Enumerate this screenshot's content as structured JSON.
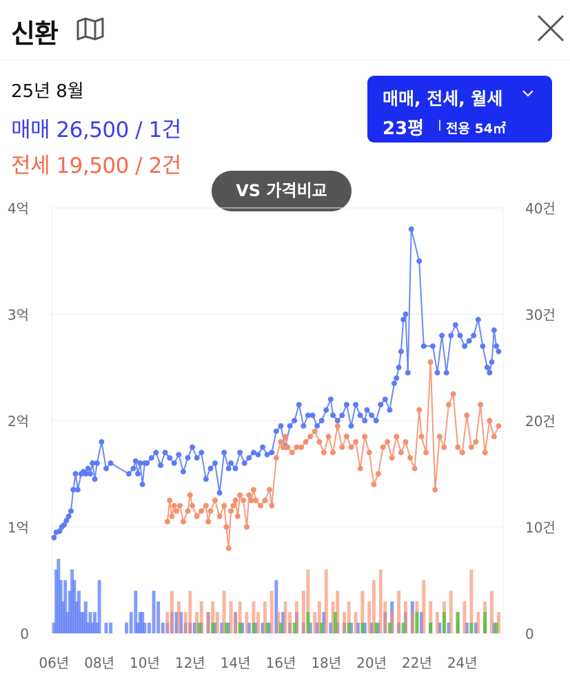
{
  "header": {
    "title": "신환",
    "map_icon": "map-icon",
    "close_icon": "close-icon"
  },
  "summary": {
    "month": "25년 8월",
    "sale": {
      "label": "매매",
      "price": "26,500",
      "count": "1건"
    },
    "jeonse": {
      "label": "전세",
      "price": "19,500",
      "count": "2건"
    }
  },
  "filter": {
    "types": "매매, 전세, 월세",
    "size": "23평",
    "area": "전용 54㎡"
  },
  "compare_button": "VS 가격비교",
  "colors": {
    "sale": "#5b7cf5",
    "sale_text": "#3a40e6",
    "jeonse": "#f5906e",
    "jeonse_text": "#f56a4c",
    "monthly": "#4cc23a",
    "button": "#1a2cf0"
  },
  "chart_data": {
    "type": "line",
    "x_tick_labels": [
      "06년",
      "08년",
      "10년",
      "12년",
      "14년",
      "16년",
      "18년",
      "20년",
      "22년",
      "24년"
    ],
    "x_tick_years": [
      2006,
      2008,
      2010,
      2012,
      2014,
      2016,
      2018,
      2020,
      2022,
      2024
    ],
    "xlim": [
      2005.9,
      2025.8
    ],
    "y_left_tick_labels": [
      "0",
      "1억",
      "2억",
      "3억",
      "4억"
    ],
    "y_left_ticks": [
      0,
      10000,
      20000,
      30000,
      40000
    ],
    "y_left_unit": "만원",
    "y_right_tick_labels": [
      "0",
      "10건",
      "20건",
      "30건",
      "40건"
    ],
    "y_right_ticks": [
      0,
      10,
      20,
      30,
      40
    ],
    "ylim": [
      0,
      40000
    ],
    "grid": true,
    "series": [
      {
        "key": "sale",
        "type": "line",
        "x": [
          2006.0,
          2006.1,
          2006.25,
          2006.35,
          2006.45,
          2006.55,
          2006.65,
          2006.75,
          2006.85,
          2006.95,
          2007.05,
          2007.2,
          2007.3,
          2007.4,
          2007.5,
          2007.6,
          2007.7,
          2007.8,
          2007.9,
          2008.1,
          2008.3,
          2008.5,
          2009.3,
          2009.5,
          2009.6,
          2009.7,
          2009.8,
          2009.9,
          2010.0,
          2010.1,
          2010.3,
          2010.5,
          2010.7,
          2010.9,
          2011.1,
          2011.3,
          2011.5,
          2011.7,
          2011.9,
          2012.1,
          2012.3,
          2012.5,
          2012.7,
          2012.9,
          2013.1,
          2013.3,
          2013.5,
          2013.7,
          2013.8,
          2014.0,
          2014.2,
          2014.4,
          2014.6,
          2014.8,
          2015.0,
          2015.2,
          2015.4,
          2015.6,
          2015.8,
          2016.0,
          2016.2,
          2016.4,
          2016.6,
          2016.8,
          2017.0,
          2017.2,
          2017.4,
          2017.6,
          2017.8,
          2018.0,
          2018.2,
          2018.3,
          2018.5,
          2018.7,
          2018.9,
          2019.1,
          2019.3,
          2019.5,
          2019.7,
          2019.8,
          2020.0,
          2020.2,
          2020.4,
          2020.6,
          2020.8,
          2021.0,
          2021.1,
          2021.2,
          2021.3,
          2021.4,
          2021.5,
          2021.6,
          2021.75,
          2022.1,
          2022.3,
          2022.7,
          2022.9,
          2023.1,
          2023.3,
          2023.5,
          2023.7,
          2023.9,
          2024.1,
          2024.3,
          2024.5,
          2024.7,
          2024.9,
          2025.1,
          2025.2,
          2025.3,
          2025.4,
          2025.5,
          2025.6
        ],
        "values": [
          9000,
          9500,
          9600,
          10000,
          10200,
          10600,
          11000,
          11500,
          13500,
          15000,
          13500,
          15000,
          15200,
          15000,
          15500,
          15000,
          16000,
          14500,
          16000,
          18000,
          15500,
          16000,
          15000,
          15500,
          16200,
          15000,
          16000,
          14000,
          16000,
          16000,
          16500,
          17000,
          15800,
          17000,
          16500,
          16000,
          16800,
          15200,
          16500,
          17500,
          16500,
          17000,
          14500,
          15500,
          16000,
          13200,
          17000,
          15500,
          16000,
          15500,
          17000,
          16000,
          16500,
          17000,
          16800,
          17500,
          16800,
          17000,
          19000,
          19500,
          17500,
          19500,
          20000,
          21500,
          19500,
          20500,
          20500,
          19500,
          20000,
          21000,
          22000,
          20500,
          20000,
          20500,
          21500,
          19500,
          21500,
          20500,
          20000,
          21000,
          20500,
          20000,
          21500,
          22000,
          21000,
          23500,
          24000,
          25000,
          26500,
          29500,
          30000,
          24500,
          38000,
          35000,
          27000,
          27000,
          24500,
          28000,
          24500,
          28000,
          29000,
          28000,
          27000,
          27500,
          28000,
          29500,
          27000,
          25000,
          24500,
          25500,
          28500,
          27000,
          26500
        ]
      },
      {
        "key": "jeonse",
        "type": "line",
        "x": [
          2011.0,
          2011.1,
          2011.2,
          2011.3,
          2011.4,
          2011.55,
          2011.7,
          2011.9,
          2012.0,
          2012.1,
          2012.3,
          2012.5,
          2012.7,
          2012.8,
          2012.9,
          2013.1,
          2013.3,
          2013.5,
          2013.6,
          2013.7,
          2013.8,
          2013.9,
          2014.0,
          2014.1,
          2014.2,
          2014.35,
          2014.5,
          2014.6,
          2014.7,
          2014.8,
          2014.9,
          2015.1,
          2015.3,
          2015.5,
          2015.6,
          2015.8,
          2016.0,
          2016.1,
          2016.2,
          2016.3,
          2016.5,
          2016.7,
          2016.9,
          2017.1,
          2017.3,
          2017.5,
          2017.7,
          2017.9,
          2018.1,
          2018.3,
          2018.5,
          2018.7,
          2018.9,
          2019.1,
          2019.3,
          2019.5,
          2019.7,
          2019.9,
          2020.1,
          2020.3,
          2020.5,
          2020.7,
          2020.9,
          2021.1,
          2021.3,
          2021.5,
          2021.7,
          2021.9,
          2022.1,
          2022.2,
          2022.4,
          2022.6,
          2022.8,
          2023.0,
          2023.2,
          2023.4,
          2023.6,
          2023.8,
          2024.0,
          2024.2,
          2024.4,
          2024.6,
          2024.8,
          2025.0,
          2025.2,
          2025.4,
          2025.6
        ],
        "values": [
          10500,
          12500,
          11000,
          12000,
          11500,
          12000,
          10500,
          11500,
          13000,
          12000,
          11000,
          11500,
          12000,
          10500,
          11500,
          12500,
          11000,
          12000,
          10000,
          8000,
          11500,
          12000,
          12500,
          11000,
          13000,
          12500,
          10000,
          13000,
          12500,
          13500,
          12500,
          12000,
          12500,
          13500,
          12000,
          16500,
          18000,
          17500,
          18500,
          17500,
          17000,
          17500,
          17500,
          18000,
          18500,
          19000,
          18000,
          17000,
          18500,
          17000,
          19500,
          17500,
          18500,
          17500,
          18000,
          15500,
          18500,
          17000,
          14000,
          15000,
          17500,
          18000,
          16500,
          18500,
          17000,
          18000,
          16500,
          15500,
          21000,
          18500,
          17000,
          25500,
          13500,
          18500,
          17500,
          21500,
          22500,
          17500,
          17000,
          20500,
          17500,
          18000,
          21500,
          17000,
          20000,
          18500,
          19500
        ]
      }
    ],
    "volume_series": [
      {
        "key": "sale_volume",
        "type": "bar",
        "x": [
          2006.0,
          2006.1,
          2006.2,
          2006.3,
          2006.4,
          2006.5,
          2006.6,
          2006.7,
          2006.8,
          2006.9,
          2007.0,
          2007.1,
          2007.2,
          2007.3,
          2007.4,
          2007.5,
          2007.6,
          2007.7,
          2007.8,
          2007.9,
          2008.0,
          2008.3,
          2008.5,
          2009.2,
          2009.4,
          2009.6,
          2009.7,
          2009.8,
          2009.9,
          2010.0,
          2010.2,
          2010.4,
          2010.6,
          2010.8,
          2011.0,
          2011.2,
          2011.4,
          2011.6,
          2011.8,
          2012.0,
          2012.2,
          2012.5,
          2012.8,
          2013.1,
          2013.4,
          2013.7,
          2014.0,
          2014.3,
          2014.6,
          2014.9,
          2015.2,
          2015.5,
          2015.8,
          2016.1,
          2016.4,
          2016.7,
          2017.0,
          2017.3,
          2017.6,
          2017.9,
          2018.2,
          2018.5,
          2018.8,
          2019.1,
          2019.4,
          2019.7,
          2020.0,
          2020.3,
          2020.6,
          2020.9,
          2021.2,
          2021.5,
          2021.8,
          2022.2,
          2022.6,
          2023.0,
          2023.4,
          2023.8,
          2024.2,
          2024.6,
          2025.0,
          2025.4
        ],
        "values": [
          1,
          6,
          7,
          5,
          3,
          5,
          2,
          4,
          6,
          5,
          3,
          4,
          2,
          2,
          3,
          1,
          2,
          1,
          2,
          1,
          5,
          1,
          1,
          1,
          2,
          4,
          1,
          2,
          2,
          1,
          1,
          4,
          3,
          1,
          1,
          2,
          2,
          2,
          1,
          1,
          1,
          1,
          2,
          1,
          1,
          1,
          2,
          1,
          1,
          1,
          1,
          1,
          5,
          2,
          1,
          2,
          1,
          1,
          1,
          2,
          1,
          1,
          1,
          1,
          1,
          1,
          1,
          1,
          2,
          3,
          1,
          2,
          3,
          2,
          1,
          1,
          1,
          1,
          1,
          1,
          1,
          1
        ]
      },
      {
        "key": "jeonse_volume",
        "type": "bar",
        "x": [
          2011.0,
          2011.2,
          2011.5,
          2011.8,
          2012.0,
          2012.3,
          2012.5,
          2012.8,
          2013.0,
          2013.2,
          2013.5,
          2013.8,
          2014.0,
          2014.2,
          2014.5,
          2014.8,
          2015.0,
          2015.3,
          2015.6,
          2015.9,
          2016.2,
          2016.4,
          2016.7,
          2017.0,
          2017.2,
          2017.5,
          2017.7,
          2018.0,
          2018.3,
          2018.5,
          2018.8,
          2019.0,
          2019.3,
          2019.6,
          2019.9,
          2020.1,
          2020.4,
          2020.6,
          2020.9,
          2021.2,
          2021.5,
          2021.8,
          2022.0,
          2022.3,
          2022.6,
          2022.9,
          2023.2,
          2023.5,
          2023.8,
          2024.1,
          2024.4,
          2024.7,
          2025.0,
          2025.3,
          2025.6
        ],
        "values": [
          2,
          4,
          3,
          2,
          4,
          2,
          3,
          2,
          3,
          2,
          4,
          3,
          2,
          3,
          2,
          3,
          2,
          3,
          4,
          2,
          3,
          2,
          3,
          4,
          6,
          2,
          3,
          6,
          3,
          4,
          2,
          3,
          2,
          4,
          3,
          5,
          6,
          3,
          2,
          4,
          3,
          2,
          3,
          5,
          3,
          2,
          3,
          4,
          2,
          3,
          6,
          2,
          3,
          4,
          2
        ]
      },
      {
        "key": "monthly_volume",
        "type": "bar",
        "x": [
          2012.4,
          2013.0,
          2013.6,
          2014.2,
          2014.8,
          2015.4,
          2016.0,
          2016.6,
          2017.2,
          2017.8,
          2018.4,
          2019.0,
          2019.6,
          2020.2,
          2020.8,
          2021.4,
          2022.0,
          2022.6,
          2023.2,
          2023.8,
          2024.4,
          2025.0,
          2025.5
        ],
        "values": [
          1,
          1,
          1,
          1,
          1,
          1,
          1,
          1,
          2,
          1,
          2,
          1,
          1,
          1,
          1,
          1,
          2,
          1,
          2,
          2,
          1,
          2,
          1
        ]
      }
    ],
    "volume_ylim": [
      0,
      40
    ]
  }
}
